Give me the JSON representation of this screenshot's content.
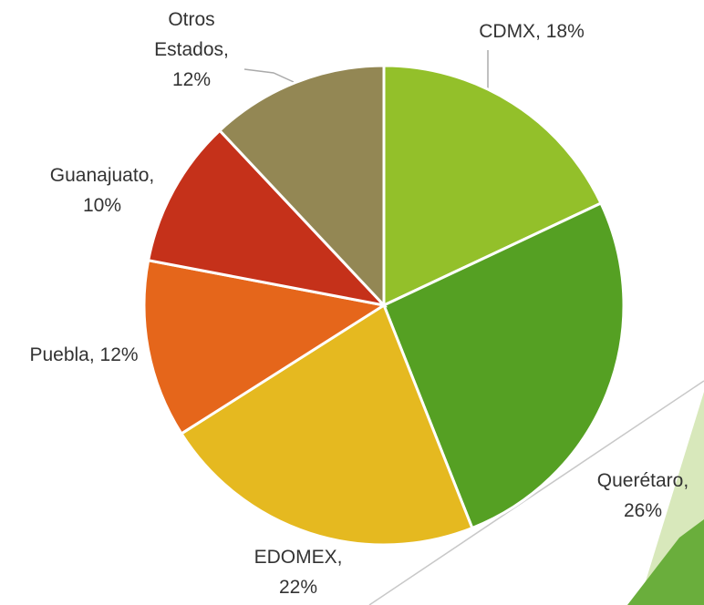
{
  "chart_data": {
    "type": "pie",
    "categories": [
      "CDMX",
      "Querétaro",
      "EDOMEX",
      "Puebla",
      "Guanajuato",
      "Otros Estados"
    ],
    "values": [
      18,
      26,
      22,
      12,
      10,
      12
    ],
    "value_labels": [
      "CDMX, 18%",
      "Querétaro,\n26%",
      "EDOMEX,\n22%",
      "Puebla, 12%",
      "Guanajuato,\n10%",
      "Otros\nEstados,\n12%"
    ],
    "colors": [
      "#93c02a",
      "#55a023",
      "#e5b920",
      "#e5661b",
      "#c5311a",
      "#938754"
    ]
  }
}
